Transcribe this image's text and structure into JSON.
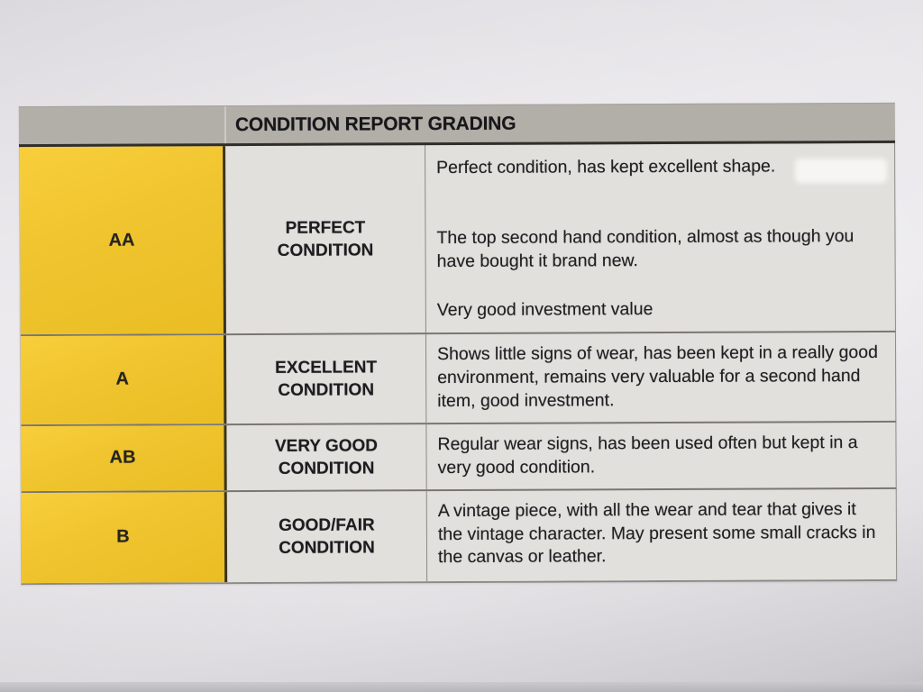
{
  "document": {
    "header": "CONDITION REPORT GRADING",
    "rows": [
      {
        "grade": "AA",
        "condition": "PERFECT CONDITION",
        "paragraphs": [
          "Perfect condition, has kept excellent shape.",
          "The top second hand condition, almost as though you have bought it brand new.",
          "Very good investment value"
        ]
      },
      {
        "grade": "A",
        "condition": "EXCELLENT CONDITION",
        "paragraphs": [
          "Shows little signs of wear, has been kept in a really good environment, remains very valuable for a second hand item, good investment."
        ]
      },
      {
        "grade": "AB",
        "condition": "VERY GOOD CONDITION",
        "paragraphs": [
          "Regular wear signs, has been used often but kept in a very good condition."
        ]
      },
      {
        "grade": "B",
        "condition": "GOOD/FAIR CONDITION",
        "paragraphs": [
          "A vintage piece, with all the wear and tear that gives it the vintage character. May present some small cracks in the canvas or leather."
        ]
      }
    ],
    "colors": {
      "grade_column_yellow": "#efc42e",
      "header_bar_gray": "#b2afa9",
      "cell_background": "#e2e0dc",
      "text": "#202023"
    }
  }
}
